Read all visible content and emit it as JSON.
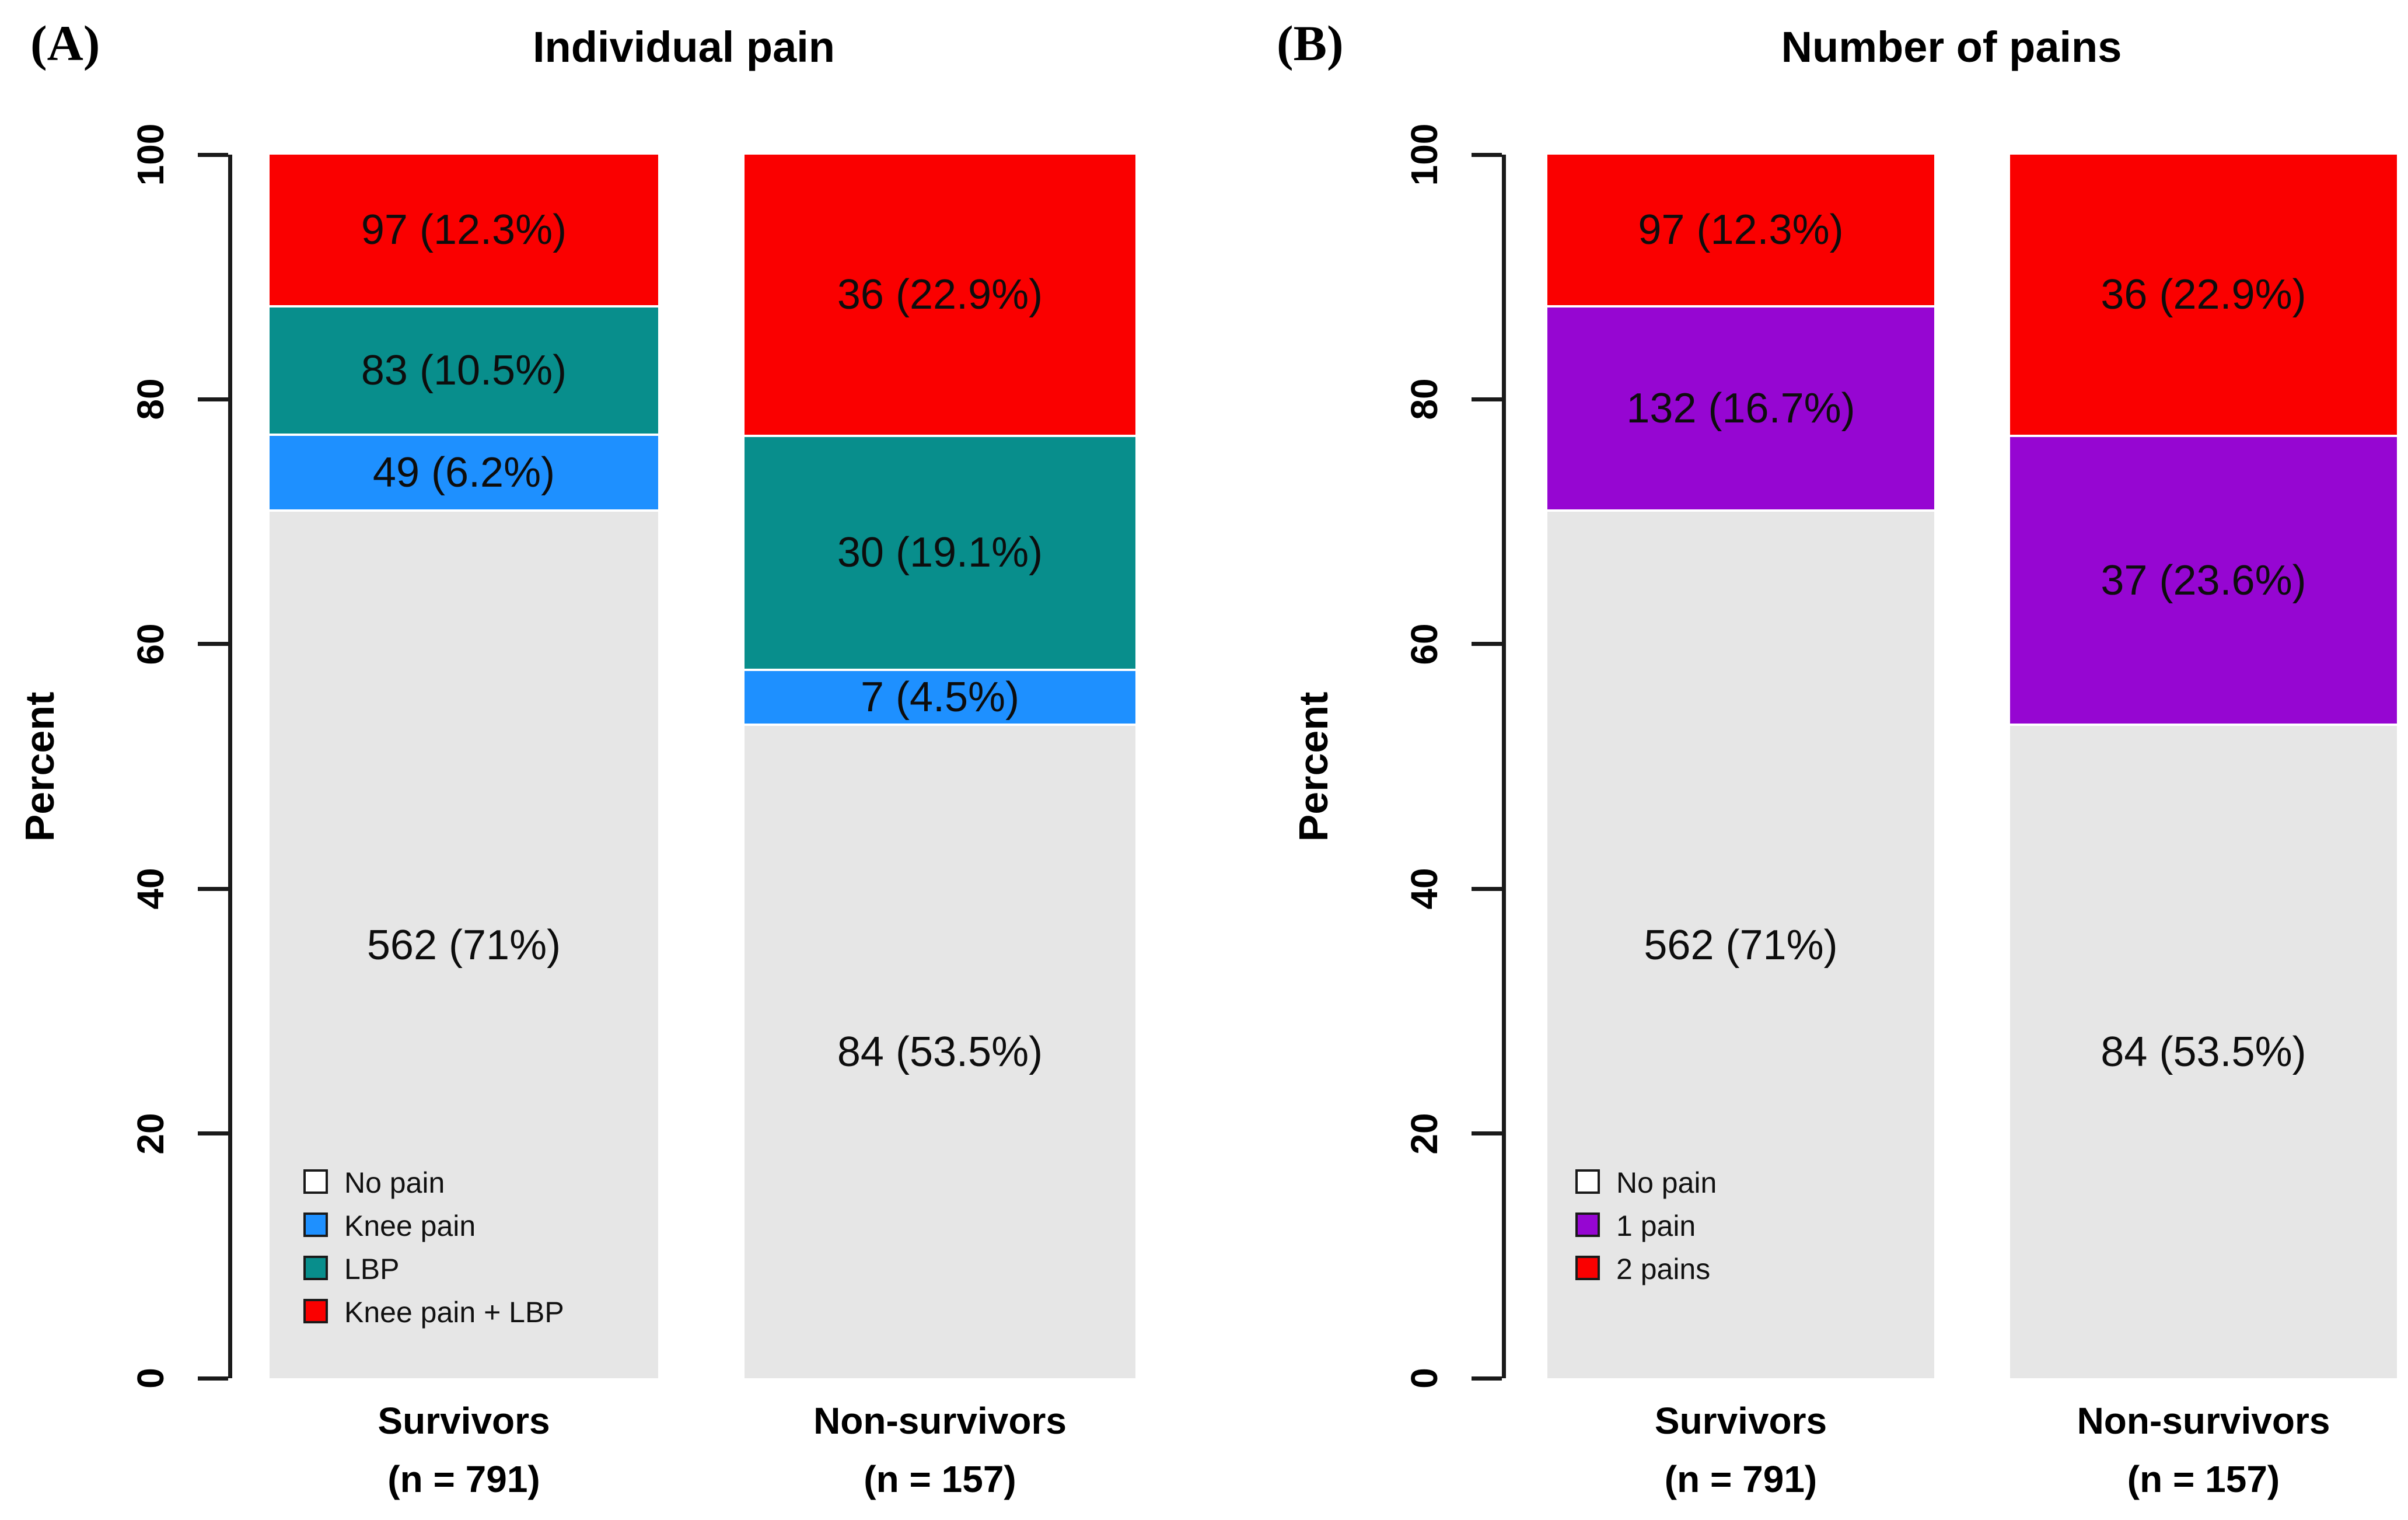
{
  "chart_data": [
    {
      "type": "bar",
      "stacked": true,
      "title": "Individual pain",
      "panel_letter": "(A)",
      "categories": [
        "Survivors (n = 791)",
        "Non-survivors (n = 157)"
      ],
      "series": [
        {
          "name": "No pain",
          "values": [
            71,
            53.5
          ],
          "counts": [
            562,
            84
          ],
          "color": "#E6E6E6"
        },
        {
          "name": "Knee pain",
          "values": [
            6.2,
            4.5
          ],
          "counts": [
            49,
            7
          ],
          "color": "#1E90FF"
        },
        {
          "name": "LBP",
          "values": [
            10.5,
            19.1
          ],
          "counts": [
            83,
            30
          ],
          "color": "#088E8C"
        },
        {
          "name": "Knee pain + LBP",
          "values": [
            12.3,
            22.9
          ],
          "counts": [
            97,
            36
          ],
          "color": "#FA0000"
        }
      ],
      "xlabel": "",
      "ylabel": "Percent",
      "ylim": [
        0,
        100
      ],
      "y_ticks": [
        0,
        20,
        40,
        60,
        80,
        100
      ],
      "grid": false,
      "legend_position": "bottom-left-inside"
    },
    {
      "type": "bar",
      "stacked": true,
      "title": "Number of pains",
      "panel_letter": "(B)",
      "categories": [
        "Survivors (n = 791)",
        "Non-survivors (n = 157)"
      ],
      "series": [
        {
          "name": "No pain",
          "values": [
            71,
            53.5
          ],
          "counts": [
            562,
            84
          ],
          "color": "#E6E6E6"
        },
        {
          "name": "1 pain",
          "values": [
            16.7,
            23.6
          ],
          "counts": [
            132,
            37
          ],
          "color": "#9606D2"
        },
        {
          "name": "2 pains",
          "values": [
            12.3,
            22.9
          ],
          "counts": [
            97,
            36
          ],
          "color": "#FA0000"
        }
      ],
      "xlabel": "",
      "ylabel": "Percent",
      "ylim": [
        0,
        100
      ],
      "y_ticks": [
        0,
        20,
        40,
        60,
        80,
        100
      ],
      "grid": false,
      "legend_position": "bottom-left-inside"
    }
  ],
  "figure": {
    "background": "#FFFFFF",
    "y_axis_label": "Percent",
    "y_ticks": [
      0,
      20,
      40,
      60,
      80,
      100
    ],
    "panels": [
      {
        "letter": "(A)",
        "title": "Individual pain",
        "x_labels": [
          [
            "Survivors",
            "(n = 791)"
          ],
          [
            "Non-survivors",
            "(n = 157)"
          ]
        ],
        "bars": [
          {
            "segments": [
              {
                "category": "No pain",
                "color": "#E6E6E6",
                "pct": 71,
                "text": "562 (71%)"
              },
              {
                "category": "Knee pain",
                "color": "#1E90FF",
                "pct": 6.2,
                "text": "49 (6.2%)"
              },
              {
                "category": "LBP",
                "color": "#088E8C",
                "pct": 10.5,
                "text": "83 (10.5%)"
              },
              {
                "category": "Knee pain + LBP",
                "color": "#FA0000",
                "pct": 12.3,
                "text": "97 (12.3%)"
              }
            ]
          },
          {
            "segments": [
              {
                "category": "No pain",
                "color": "#E6E6E6",
                "pct": 53.5,
                "text": "84 (53.5%)"
              },
              {
                "category": "Knee pain",
                "color": "#1E90FF",
                "pct": 4.5,
                "text": "7 (4.5%)"
              },
              {
                "category": "LBP",
                "color": "#088E8C",
                "pct": 19.1,
                "text": "30 (19.1%)"
              },
              {
                "category": "Knee pain + LBP",
                "color": "#FA0000",
                "pct": 22.9,
                "text": "36 (22.9%)"
              }
            ]
          }
        ],
        "legend": [
          {
            "label": "No pain",
            "swatch": "#FFFFFF"
          },
          {
            "label": "Knee pain",
            "swatch": "#1E90FF"
          },
          {
            "label": "LBP",
            "swatch": "#088E8C"
          },
          {
            "label": "Knee pain + LBP",
            "swatch": "#FA0000"
          }
        ]
      },
      {
        "letter": "(B)",
        "title": "Number of pains",
        "x_labels": [
          [
            "Survivors",
            "(n = 791)"
          ],
          [
            "Non-survivors",
            "(n = 157)"
          ]
        ],
        "bars": [
          {
            "segments": [
              {
                "category": "No pain",
                "color": "#E6E6E6",
                "pct": 71,
                "text": "562 (71%)"
              },
              {
                "category": "1 pain",
                "color": "#9606D2",
                "pct": 16.7,
                "text": "132 (16.7%)"
              },
              {
                "category": "2 pains",
                "color": "#FA0000",
                "pct": 12.3,
                "text": "97 (12.3%)"
              }
            ]
          },
          {
            "segments": [
              {
                "category": "No pain",
                "color": "#E6E6E6",
                "pct": 53.5,
                "text": "84 (53.5%)"
              },
              {
                "category": "1 pain",
                "color": "#9606D2",
                "pct": 23.6,
                "text": "37 (23.6%)"
              },
              {
                "category": "2 pains",
                "color": "#FA0000",
                "pct": 22.9,
                "text": "36 (22.9%)"
              }
            ]
          }
        ],
        "legend": [
          {
            "label": "No pain",
            "swatch": "#FFFFFF"
          },
          {
            "label": "1 pain",
            "swatch": "#9606D2"
          },
          {
            "label": "2 pains",
            "swatch": "#FA0000"
          }
        ]
      }
    ]
  }
}
